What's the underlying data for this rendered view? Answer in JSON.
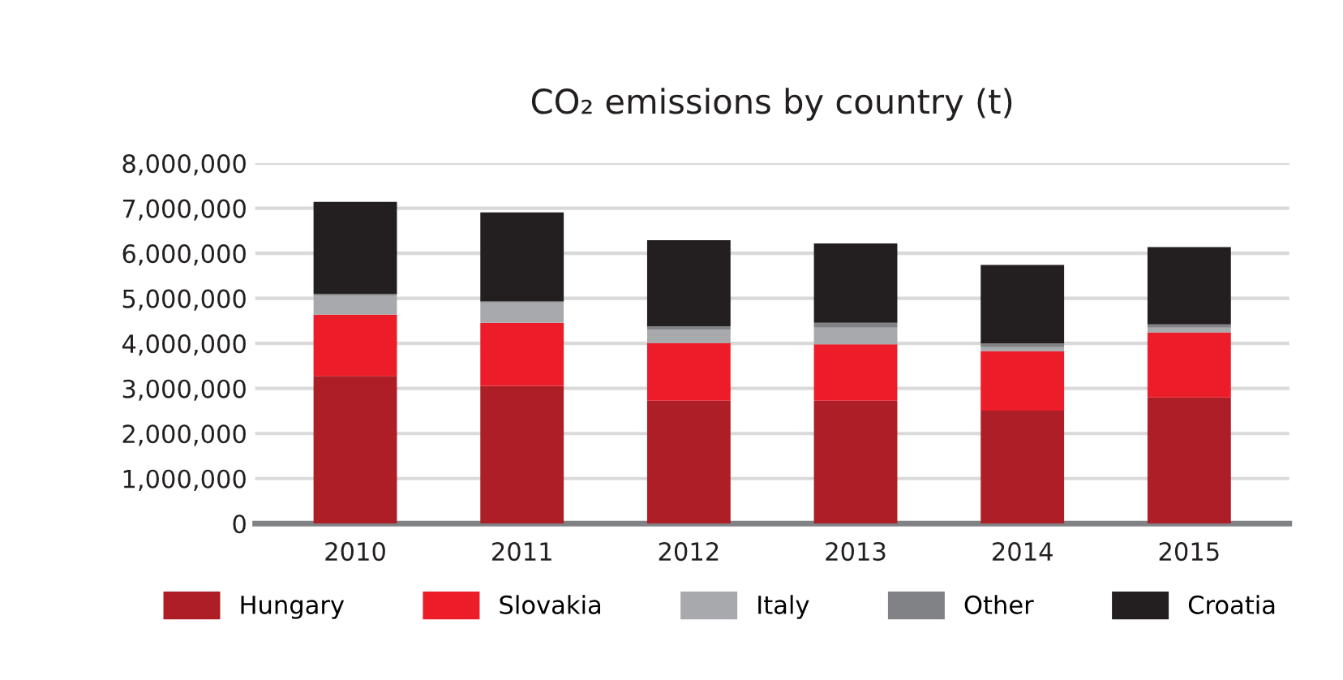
{
  "chart_data": {
    "type": "bar",
    "title": "CO₂ emissions by country (t)",
    "stacked": true,
    "categories": [
      "2010",
      "2011",
      "2012",
      "2013",
      "2014",
      "2015"
    ],
    "series": [
      {
        "name": "Hungary",
        "color": "#ae1e27",
        "values": [
          3280000,
          3060000,
          2730000,
          2730000,
          2510000,
          2800000
        ]
      },
      {
        "name": "Slovakia",
        "color": "#ed1c29",
        "values": [
          1360000,
          1400000,
          1280000,
          1250000,
          1320000,
          1440000
        ]
      },
      {
        "name": "Italy",
        "color": "#a7a9ac",
        "values": [
          420000,
          450000,
          300000,
          370000,
          90000,
          110000
        ]
      },
      {
        "name": "Other",
        "color": "#808285",
        "values": [
          40000,
          20000,
          70000,
          110000,
          80000,
          70000
        ]
      },
      {
        "name": "Croatia",
        "color": "#231f20",
        "values": [
          2040000,
          1980000,
          1910000,
          1760000,
          1740000,
          1720000
        ]
      }
    ],
    "ylim": [
      0,
      8000000
    ],
    "yticks": [
      0,
      {
        "value": 1000000,
        "label": "1,000,000"
      },
      {
        "value": 2000000,
        "label": "2,000,000"
      },
      {
        "value": 3000000,
        "label": "3,000,000"
      },
      {
        "value": 4000000,
        "label": "4,000,000"
      },
      {
        "value": 5000000,
        "label": "5,000,000"
      },
      {
        "value": 6000000,
        "label": "6,000,000"
      },
      {
        "value": 7000000,
        "label": "7,000,000"
      },
      {
        "value": 8000000,
        "label": "8,000,000"
      }
    ],
    "grid": "y",
    "legend": "bottom"
  }
}
